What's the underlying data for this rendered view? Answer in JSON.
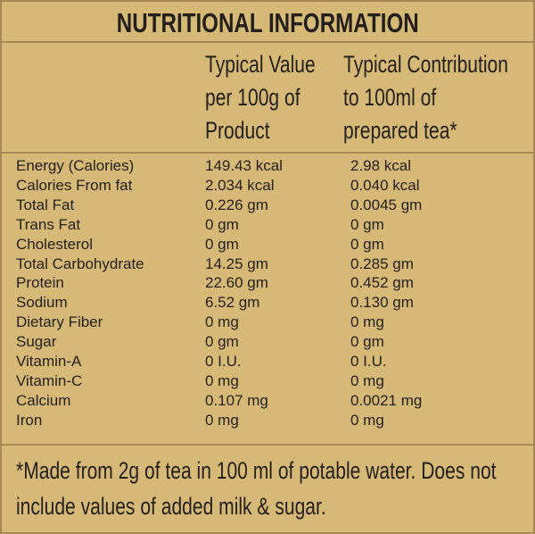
{
  "title": "NUTRITIONAL INFORMATION",
  "table": {
    "headers": [
      {
        "lines": [
          "Typical Value",
          "per 100g of",
          "Product"
        ]
      },
      {
        "lines": [
          "Typical Contribution",
          "to 100ml of",
          "prepared tea*"
        ]
      }
    ],
    "rows": [
      [
        "Energy (Calories)",
        "149.43 kcal",
        "2.98 kcal"
      ],
      [
        "Calories From fat",
        "2.034 kcal",
        "0.040 kcal"
      ],
      [
        "Total Fat",
        "0.226 gm",
        "0.0045 gm"
      ],
      [
        "Trans Fat",
        "0 gm",
        "0 gm"
      ],
      [
        "Cholesterol",
        "0 gm",
        "0 gm"
      ],
      [
        "Total Carbohydrate",
        "14.25 gm",
        "0.285 gm"
      ],
      [
        "Protein",
        "22.60 gm",
        "0.452 gm"
      ],
      [
        "Sodium",
        "6.52 gm",
        "0.130 gm"
      ],
      [
        "Dietary Fiber",
        "0 mg",
        "0 mg"
      ],
      [
        "Sugar",
        "0 gm",
        "0 gm"
      ],
      [
        "Vitamin-A",
        "0 I.U.",
        "0 I.U."
      ],
      [
        "Vitamin-C",
        "0 mg",
        "0 mg"
      ],
      [
        "Calcium",
        "0.107 mg",
        "0.0021 mg"
      ],
      [
        "Iron",
        "0 mg",
        "0 mg"
      ]
    ]
  },
  "footnote": {
    "lines": [
      "*Made from 2g of tea in 100 ml of potable water. Does not",
      "include values of added milk & sugar."
    ]
  }
}
